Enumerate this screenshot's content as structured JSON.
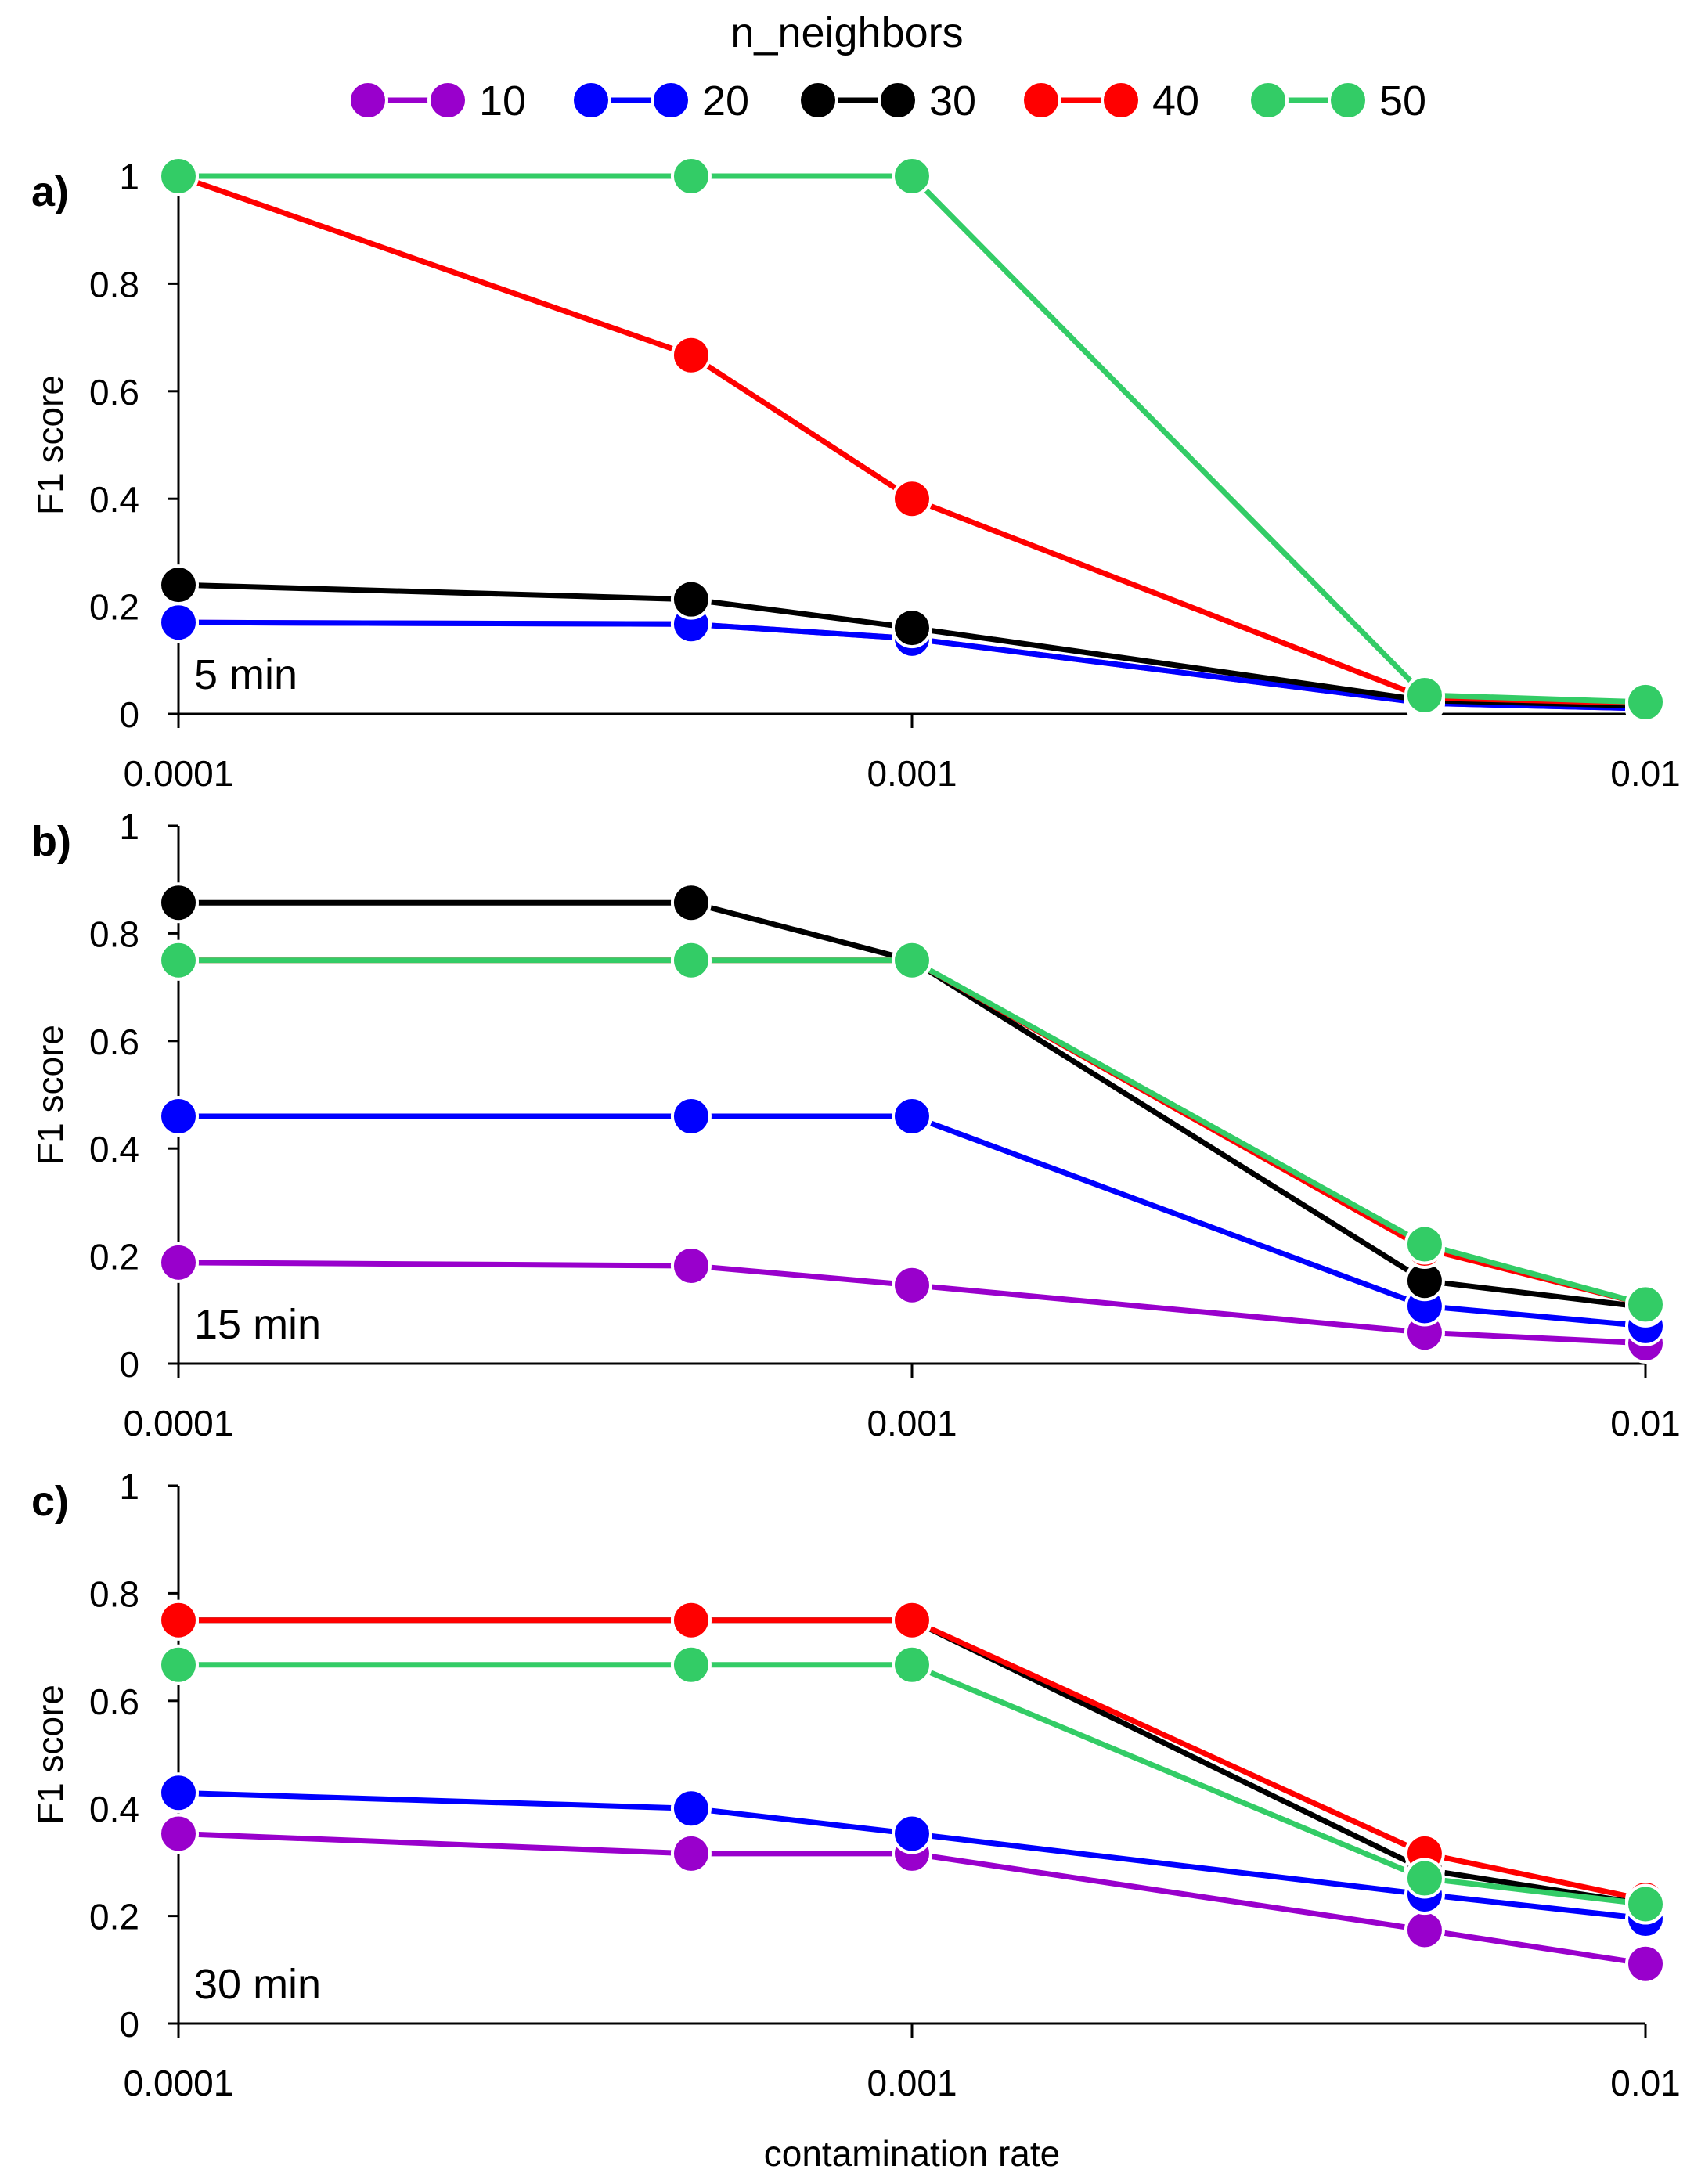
{
  "legend": {
    "title": "n_neighbors",
    "position": "top-center"
  },
  "colors": {
    "axis": "#000000",
    "marker_stroke": "#ffffff"
  },
  "chart_data": [
    {
      "type": "line",
      "panel_label": "a)",
      "annotation": "5 min",
      "ylabel": "F1 score",
      "xlabel": "",
      "xscale": "log",
      "xlim": [
        0.0001,
        0.01
      ],
      "ylim": [
        0,
        1
      ],
      "xticks": [
        0.0001,
        0.001,
        0.01
      ],
      "xtick_labels": [
        "0.0001",
        "0.001",
        "0.01"
      ],
      "yticks": [
        0,
        0.2,
        0.4,
        0.6,
        0.8,
        1
      ],
      "ytick_labels": [
        "0",
        "0.2",
        "0.4",
        "0.6",
        "0.8",
        "1"
      ],
      "grid": false,
      "x": [
        0.0001,
        0.0005,
        0.001,
        0.005,
        0.01
      ],
      "series": [
        {
          "name": "10",
          "color": "#9900cc",
          "values": [
            0.17,
            0.167,
            0.14,
            0.02,
            0.01
          ]
        },
        {
          "name": "20",
          "color": "#0000ff",
          "values": [
            0.17,
            0.167,
            0.14,
            0.02,
            0.01
          ]
        },
        {
          "name": "30",
          "color": "#000000",
          "values": [
            0.24,
            0.213,
            0.16,
            0.025,
            0.015
          ]
        },
        {
          "name": "40",
          "color": "#ff0000",
          "values": [
            1,
            0.667,
            0.4,
            0.03,
            0.02
          ]
        },
        {
          "name": "50",
          "color": "#33cc66",
          "values": [
            1,
            1,
            1,
            0.035,
            0.022
          ]
        }
      ]
    },
    {
      "type": "line",
      "panel_label": "b)",
      "annotation": "15 min",
      "ylabel": "F1 score",
      "xlabel": "",
      "xscale": "log",
      "xlim": [
        0.0001,
        0.01
      ],
      "ylim": [
        0,
        1
      ],
      "xticks": [
        0.0001,
        0.001,
        0.01
      ],
      "xtick_labels": [
        "0.0001",
        "0.001",
        "0.01"
      ],
      "yticks": [
        0,
        0.2,
        0.4,
        0.6,
        0.8,
        1
      ],
      "ytick_labels": [
        "0",
        "0.2",
        "0.4",
        "0.6",
        "0.8",
        "1"
      ],
      "grid": false,
      "x": [
        0.0001,
        0.0005,
        0.001,
        0.005,
        0.01
      ],
      "series": [
        {
          "name": "10",
          "color": "#9900cc",
          "values": [
            0.188,
            0.182,
            0.146,
            0.058,
            0.038
          ]
        },
        {
          "name": "20",
          "color": "#0000ff",
          "values": [
            0.46,
            0.46,
            0.46,
            0.107,
            0.07
          ]
        },
        {
          "name": "30",
          "color": "#000000",
          "values": [
            0.857,
            0.857,
            0.75,
            0.154,
            0.105
          ]
        },
        {
          "name": "40",
          "color": "#ff0000",
          "values": [
            0.75,
            0.75,
            0.75,
            0.214,
            0.11
          ]
        },
        {
          "name": "50",
          "color": "#33cc66",
          "values": [
            0.75,
            0.75,
            0.75,
            0.222,
            0.11
          ]
        }
      ]
    },
    {
      "type": "line",
      "panel_label": "c)",
      "annotation": "30 min",
      "ylabel": "F1 score",
      "xlabel": "contamination rate",
      "xscale": "log",
      "xlim": [
        0.0001,
        0.01
      ],
      "ylim": [
        0,
        1
      ],
      "xticks": [
        0.0001,
        0.001,
        0.01
      ],
      "xtick_labels": [
        "0.0001",
        "0.001",
        "0.01"
      ],
      "yticks": [
        0,
        0.2,
        0.4,
        0.6,
        0.8,
        1
      ],
      "ytick_labels": [
        "0",
        "0.2",
        "0.4",
        "0.6",
        "0.8",
        "1"
      ],
      "grid": false,
      "x": [
        0.0001,
        0.0005,
        0.001,
        0.005,
        0.01
      ],
      "series": [
        {
          "name": "10",
          "color": "#9900cc",
          "values": [
            0.353,
            0.316,
            0.316,
            0.174,
            0.111
          ]
        },
        {
          "name": "20",
          "color": "#0000ff",
          "values": [
            0.429,
            0.4,
            0.353,
            0.24,
            0.195
          ]
        },
        {
          "name": "30",
          "color": "#000000",
          "values": [
            0.75,
            0.75,
            0.75,
            0.286,
            0.222
          ]
        },
        {
          "name": "40",
          "color": "#ff0000",
          "values": [
            0.75,
            0.75,
            0.75,
            0.316,
            0.23
          ]
        },
        {
          "name": "50",
          "color": "#33cc66",
          "values": [
            0.667,
            0.667,
            0.667,
            0.27,
            0.222
          ]
        }
      ]
    }
  ]
}
